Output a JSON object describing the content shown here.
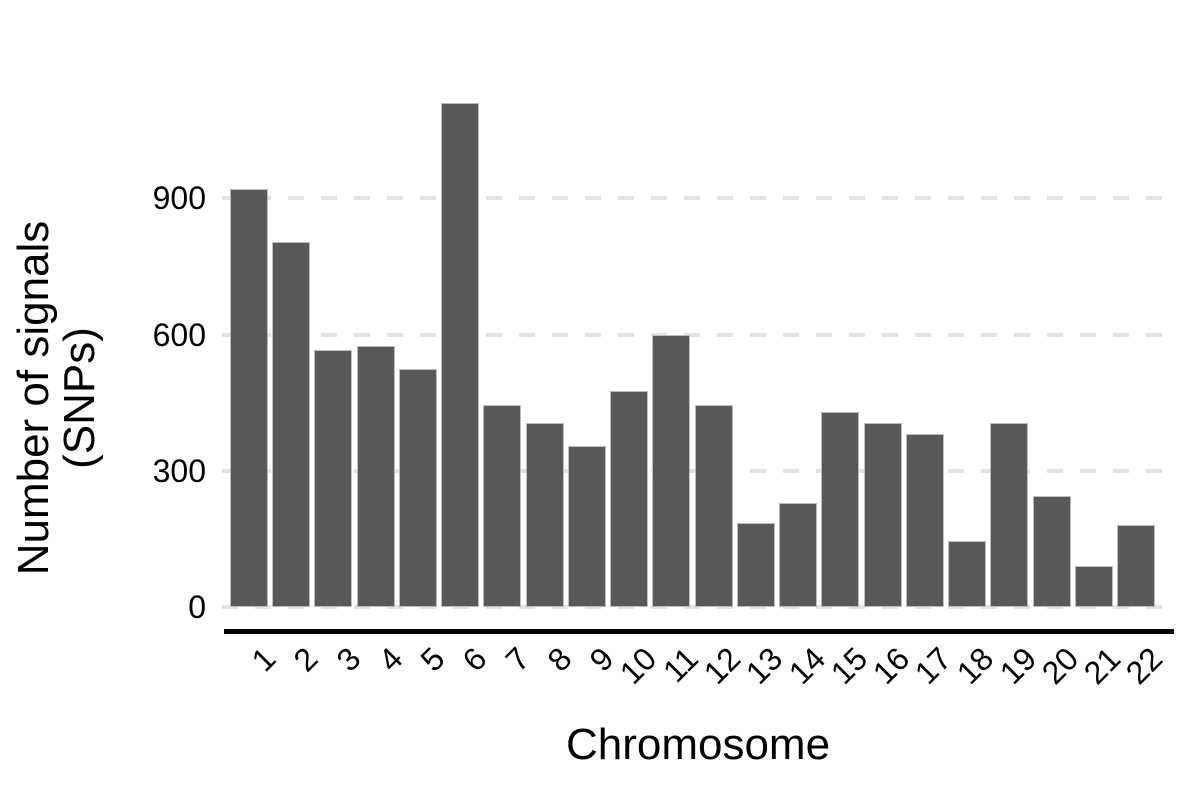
{
  "chart_data": {
    "type": "bar",
    "title": "",
    "xlabel": "Chromosome",
    "ylabel": "Number of signals (SNPs)",
    "ylabel_line1": "Number of signals",
    "ylabel_line2": "(SNPs)",
    "categories": [
      "1",
      "2",
      "3",
      "4",
      "5",
      "6",
      "7",
      "8",
      "9",
      "10",
      "11",
      "12",
      "13",
      "14",
      "15",
      "16",
      "17",
      "18",
      "19",
      "20",
      "21",
      "22"
    ],
    "values": [
      920,
      805,
      565,
      575,
      525,
      1110,
      445,
      405,
      355,
      475,
      600,
      445,
      185,
      230,
      430,
      405,
      380,
      145,
      405,
      245,
      90,
      180
    ],
    "yticks": [
      0,
      300,
      600,
      900
    ],
    "ylim": [
      0,
      1165
    ],
    "x_tick_angle_deg": 45,
    "grid": "horizontal dashed at yticks, no vertical grid",
    "legend": "none",
    "bar_color": "#595959",
    "bar_border_color": "#bdbdbd",
    "gridline_color": "#e3e3e3",
    "axis_line_color": "#000000",
    "text_color": "#000000",
    "background_color": "#ffffff"
  }
}
